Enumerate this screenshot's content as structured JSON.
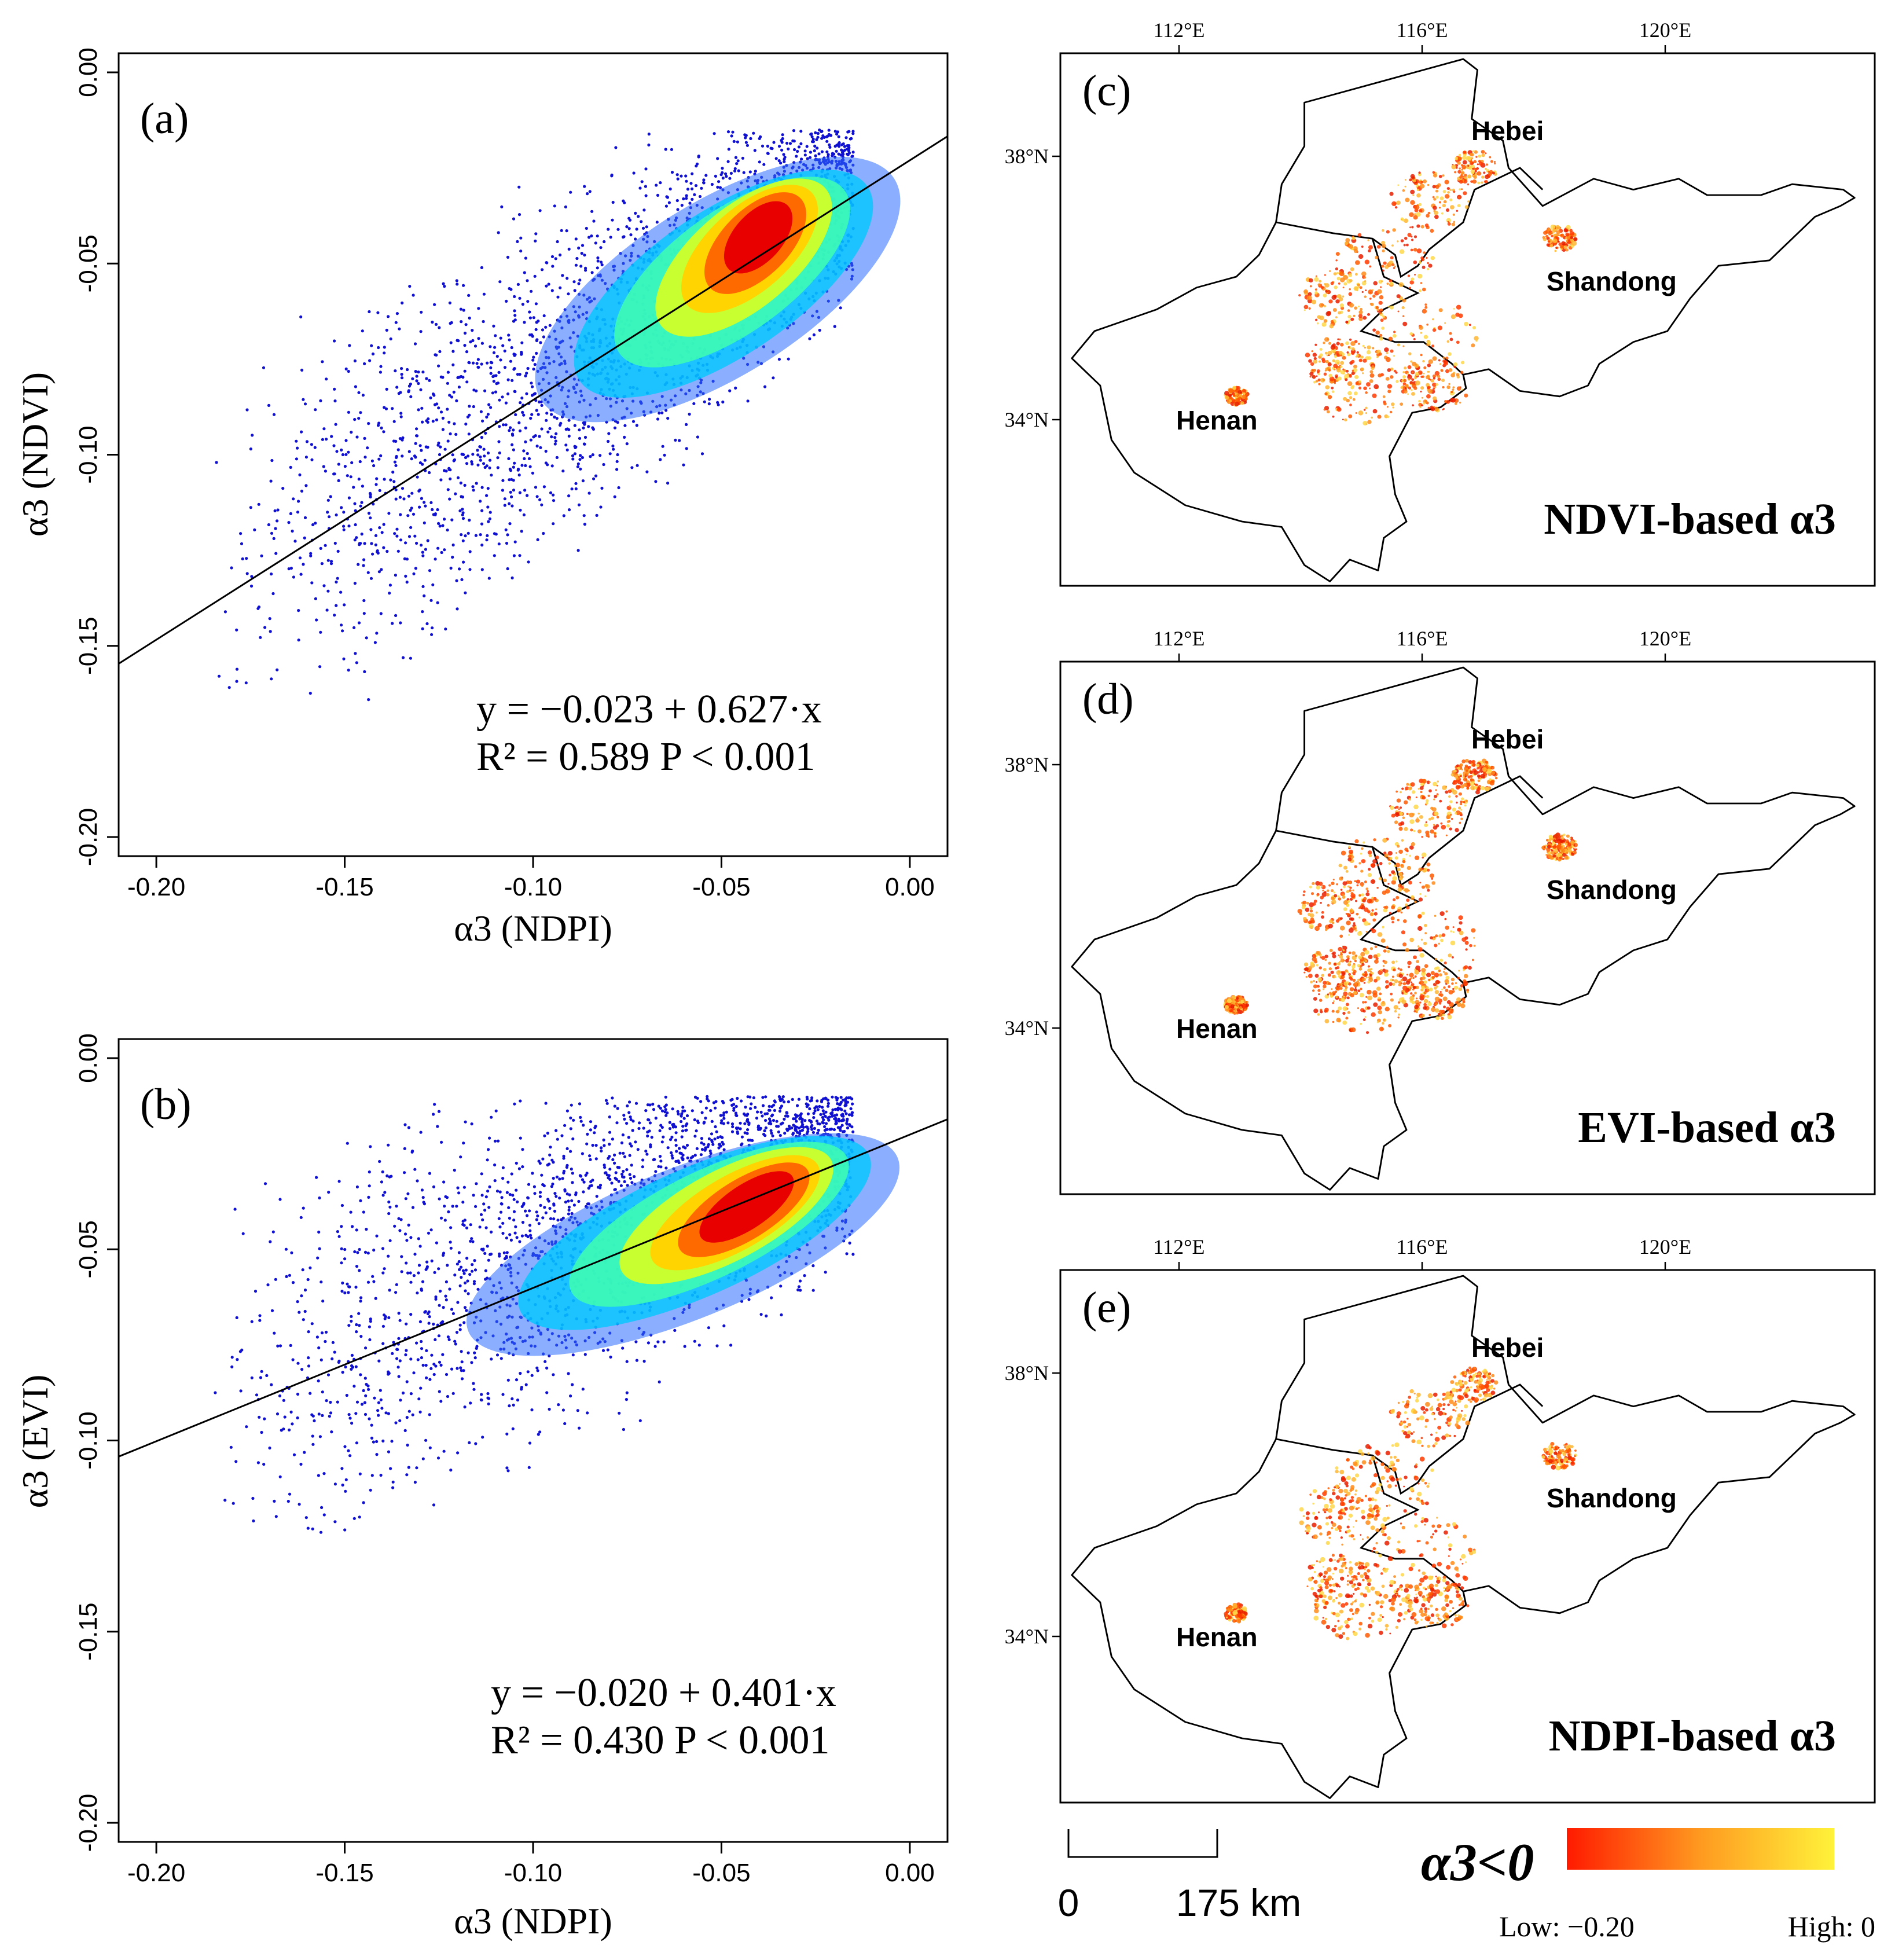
{
  "figure": {
    "scatter_a": {
      "label": "(a)",
      "xlabel": "α3 (NDPI)",
      "ylabel": "α3 (NDVI)",
      "xticks": [
        "-0.20",
        "-0.15",
        "-0.10",
        "-0.05",
        "0.00"
      ],
      "yticks": [
        "0.00",
        "-0.05",
        "-0.10",
        "-0.15",
        "-0.20"
      ],
      "equation": "y = −0.023 + 0.627·x",
      "stats": "R² = 0.589  P < 0.001"
    },
    "scatter_b": {
      "label": "(b)",
      "xlabel": "α3 (NDPI)",
      "ylabel": "α3 (EVI)",
      "xticks": [
        "-0.20",
        "-0.15",
        "-0.10",
        "-0.05",
        "0.00"
      ],
      "yticks": [
        "0.00",
        "-0.05",
        "-0.10",
        "-0.15",
        "-0.20"
      ],
      "equation": "y = −0.020 + 0.401·x",
      "stats": "R² = 0.430  P < 0.001"
    },
    "map_c": {
      "label": "(c)",
      "title": "NDVI-based α3"
    },
    "map_d": {
      "label": "(d)",
      "title": "EVI-based α3"
    },
    "map_e": {
      "label": "(e)",
      "title": "NDPI-based α3"
    },
    "map_lon_ticks": [
      "112°E",
      "116°E",
      "120°E"
    ],
    "map_lat_ticks": [
      "38°N",
      "34°N"
    ],
    "provinces": [
      "Hebei",
      "Shandong",
      "Henan"
    ],
    "scalebar": {
      "zero": "0",
      "end": "175 km"
    },
    "legend": {
      "title": "α3<0",
      "low": "Low: −0.20",
      "high": "High: 0"
    }
  },
  "chart_data": [
    {
      "type": "scatter",
      "panel": "a",
      "xlabel": "α3 (NDPI)",
      "ylabel": "α3 (NDVI)",
      "xlim": [
        -0.21,
        0.01
      ],
      "ylim": [
        -0.205,
        0.005
      ],
      "regression": {
        "intercept": -0.023,
        "slope": 0.627,
        "r2": 0.589,
        "p": "< 0.001"
      },
      "density_center": [
        -0.04,
        -0.045
      ],
      "point_cloud_range": {
        "x": [
          -0.185,
          -0.015
        ],
        "y": [
          -0.165,
          -0.015
        ]
      }
    },
    {
      "type": "scatter",
      "panel": "b",
      "xlabel": "α3 (NDPI)",
      "ylabel": "α3 (EVI)",
      "xlim": [
        -0.21,
        0.01
      ],
      "ylim": [
        -0.205,
        0.005
      ],
      "regression": {
        "intercept": -0.02,
        "slope": 0.401,
        "r2": 0.43,
        "p": "< 0.001"
      },
      "density_center": [
        -0.04,
        -0.035
      ],
      "point_cloud_range": {
        "x": [
          -0.185,
          -0.015
        ],
        "y": [
          -0.125,
          -0.01
        ]
      }
    }
  ],
  "colors": {
    "scatter_low": "#1010d0",
    "legend_low": "#ff1a00",
    "legend_high": "#fff23a"
  }
}
